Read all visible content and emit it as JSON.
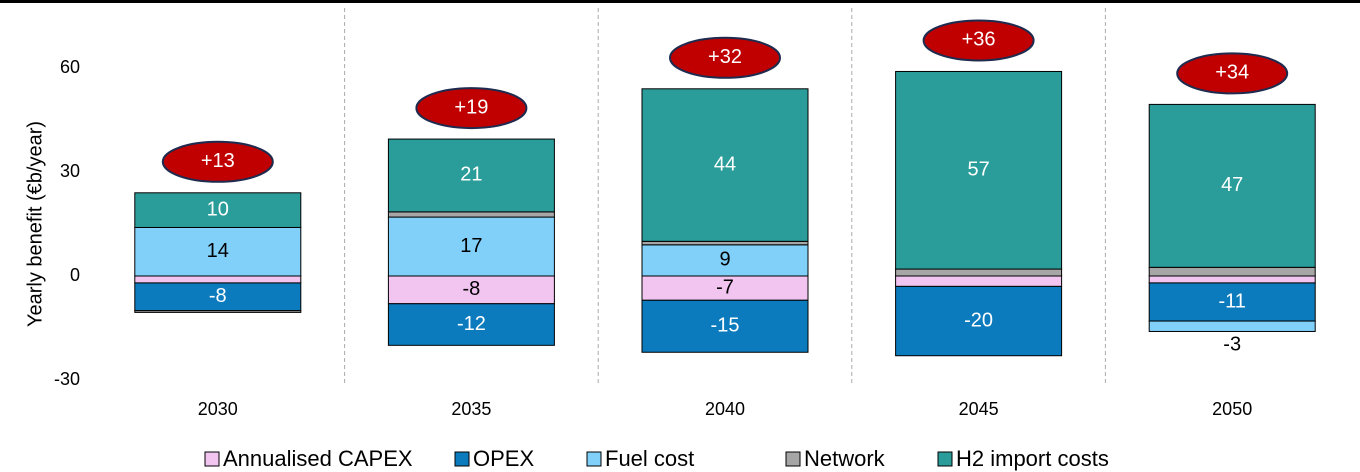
{
  "chart_data": {
    "type": "stacked_bar",
    "y_label": "Yearly benefit (€b/year)",
    "categories": [
      "2030",
      "2035",
      "2040",
      "2045",
      "2050"
    ],
    "ylim": [
      -30,
      65
    ],
    "yticks": [
      -30,
      0,
      30,
      60
    ],
    "series": [
      {
        "name": "Annualised CAPEX",
        "color": "#f2c4f0",
        "values": [
          -2,
          -8,
          -7,
          -3,
          -2
        ],
        "value_labels": [
          null,
          "-8",
          "-7",
          null,
          null
        ]
      },
      {
        "name": "OPEX",
        "color": "#0b7bbd",
        "values": [
          -8,
          -12,
          -15,
          -20,
          -11
        ],
        "value_labels": [
          "-8",
          "-12",
          "-15",
          "-20",
          "-11"
        ]
      },
      {
        "name": "Fuel cost",
        "color": "#80d0fa",
        "values": [
          14,
          17,
          9,
          0,
          -3
        ],
        "value_labels": [
          "14",
          "17",
          "9",
          null,
          "-3"
        ]
      },
      {
        "name": "Network",
        "color": "#a6a6a6",
        "values": [
          -0.5,
          1.5,
          1,
          2,
          2.5
        ],
        "value_labels": [
          null,
          null,
          null,
          null,
          null
        ]
      },
      {
        "name": "H2 import costs",
        "color": "#2a9d9a",
        "values": [
          10,
          21,
          44,
          57,
          47
        ],
        "value_labels": [
          "10",
          "21",
          "44",
          "57",
          "47"
        ]
      }
    ],
    "net": [
      13,
      19,
      32,
      36,
      34
    ],
    "net_labels": [
      "+13",
      "+19",
      "+32",
      "+36",
      "+34"
    ],
    "net_color": "#c00000"
  }
}
